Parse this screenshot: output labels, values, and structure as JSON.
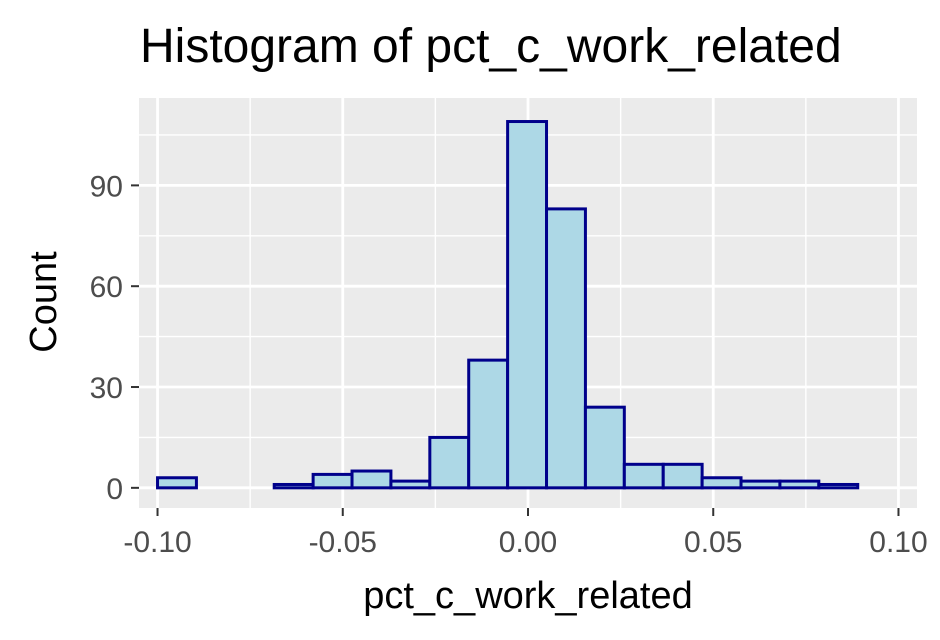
{
  "chart_data": {
    "type": "bar",
    "title": "Histogram of pct_c_work_related",
    "xlabel": "pct_c_work_related",
    "ylabel": "Count",
    "bin_width": 0.0105,
    "bins": [
      {
        "start": -0.1,
        "end": -0.0895,
        "count": 3
      },
      {
        "start": -0.0895,
        "end": -0.079,
        "count": 0
      },
      {
        "start": -0.079,
        "end": -0.0685,
        "count": 0
      },
      {
        "start": -0.0685,
        "end": -0.058,
        "count": 1
      },
      {
        "start": -0.058,
        "end": -0.0475,
        "count": 4
      },
      {
        "start": -0.0475,
        "end": -0.037,
        "count": 5
      },
      {
        "start": -0.037,
        "end": -0.0265,
        "count": 2
      },
      {
        "start": -0.0265,
        "end": -0.016,
        "count": 15
      },
      {
        "start": -0.016,
        "end": -0.0055,
        "count": 38
      },
      {
        "start": -0.0055,
        "end": 0.005,
        "count": 109
      },
      {
        "start": 0.005,
        "end": 0.0155,
        "count": 83
      },
      {
        "start": 0.0155,
        "end": 0.026,
        "count": 24
      },
      {
        "start": 0.026,
        "end": 0.0365,
        "count": 7
      },
      {
        "start": 0.0365,
        "end": 0.047,
        "count": 7
      },
      {
        "start": 0.047,
        "end": 0.0575,
        "count": 3
      },
      {
        "start": 0.0575,
        "end": 0.068,
        "count": 2
      },
      {
        "start": 0.068,
        "end": 0.0785,
        "count": 2
      },
      {
        "start": 0.0785,
        "end": 0.089,
        "count": 1
      },
      {
        "start": 0.089,
        "end": 0.0995,
        "count": 0
      }
    ],
    "xlim": [
      -0.105,
      0.105
    ],
    "ylim": [
      -6,
      116
    ],
    "x_ticks": [
      {
        "value": -0.1,
        "label": "-0.10"
      },
      {
        "value": -0.05,
        "label": "-0.05"
      },
      {
        "value": 0.0,
        "label": "0.00"
      },
      {
        "value": 0.05,
        "label": "0.05"
      },
      {
        "value": 0.1,
        "label": "0.10"
      }
    ],
    "y_ticks": [
      {
        "value": 0,
        "label": "0"
      },
      {
        "value": 30,
        "label": "30"
      },
      {
        "value": 60,
        "label": "60"
      },
      {
        "value": 90,
        "label": "90"
      }
    ],
    "grid": true,
    "colors": {
      "panel_background": "#ebebeb",
      "grid_major": "#ffffff",
      "grid_minor": "#f5f5f5",
      "bar_fill": "#add8e6",
      "bar_outline": "#00008b",
      "tick_text": "#4d4d4d",
      "tick_mark": "#333333"
    }
  }
}
